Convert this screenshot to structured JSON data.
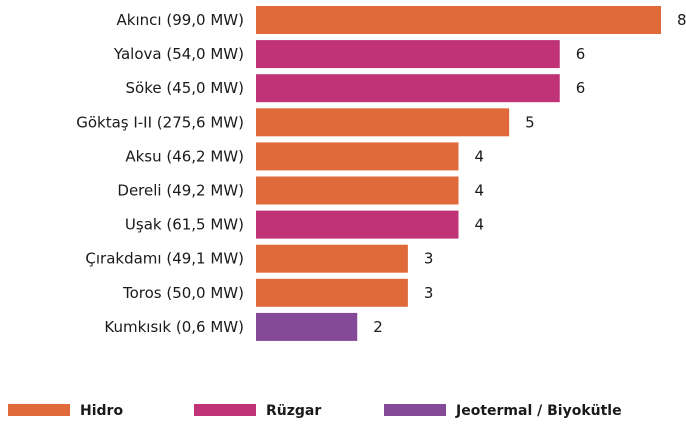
{
  "chart_data": {
    "type": "bar",
    "orientation": "horizontal",
    "title": "",
    "xlabel": "",
    "ylabel": "",
    "xlim": [
      0,
      8
    ],
    "grid": false,
    "legend_position": "bottom",
    "colors": {
      "Hidro": "#e0693a",
      "Rüzgar": "#c03377",
      "Jeotermal / Biyokütle": "#854a97"
    },
    "bars": [
      {
        "label": "Akıncı (99,0 MW)",
        "value": 8,
        "value_label": "8",
        "type": "Hidro"
      },
      {
        "label": "Yalova (54,0 MW)",
        "value": 6,
        "value_label": "6",
        "type": "Rüzgar"
      },
      {
        "label": "Söke (45,0 MW)",
        "value": 6,
        "value_label": "6",
        "type": "Rüzgar"
      },
      {
        "label": "Göktaş I-II (275,6 MW)",
        "value": 5,
        "value_label": "5",
        "type": "Hidro"
      },
      {
        "label": "Aksu (46,2 MW)",
        "value": 4,
        "value_label": "4",
        "type": "Hidro"
      },
      {
        "label": "Dereli (49,2 MW)",
        "value": 4,
        "value_label": "4",
        "type": "Hidro"
      },
      {
        "label": "Uşak (61,5 MW)",
        "value": 4,
        "value_label": "4",
        "type": "Rüzgar"
      },
      {
        "label": "Çırakdamı (49,1 MW)",
        "value": 3,
        "value_label": "3",
        "type": "Hidro"
      },
      {
        "label": "Toros (50,0 MW)",
        "value": 3,
        "value_label": "3",
        "type": "Hidro"
      },
      {
        "label": "Kumkısık (0,6 MW)",
        "value": 2,
        "value_label": "2",
        "type": "Jeotermal / Biyokütle"
      }
    ],
    "legend": [
      {
        "name": "Hidro"
      },
      {
        "name": "Rüzgar"
      },
      {
        "name": "Jeotermal / Biyokütle"
      }
    ]
  }
}
